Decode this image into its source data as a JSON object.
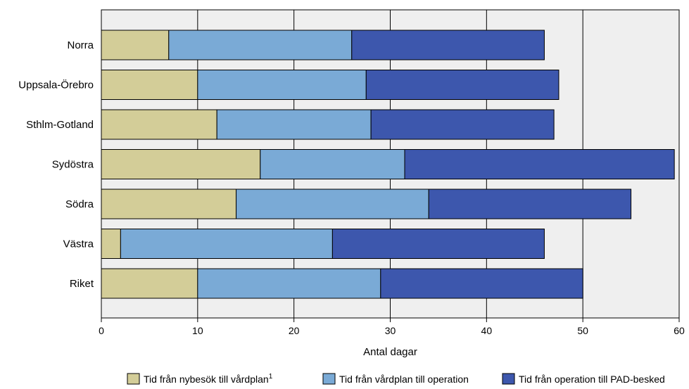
{
  "chart_data": {
    "type": "bar",
    "orientation": "horizontal",
    "stacked": true,
    "categories": [
      "Norra",
      "Uppsala-Örebro",
      "Sthlm-Gotland",
      "Sydöstra",
      "Södra",
      "Västra",
      "Riket"
    ],
    "series": [
      {
        "name": "Tid från nybesök till vårdplan",
        "name_superscript": "1",
        "color": "#d3cd98",
        "values": [
          7,
          10,
          12,
          16.5,
          14,
          2,
          10
        ]
      },
      {
        "name": "Tid från vårdplan till operation",
        "color": "#7aaad6",
        "values": [
          19,
          17.5,
          16,
          15,
          20,
          22,
          19
        ]
      },
      {
        "name": "Tid från operation till PAD-besked",
        "color": "#3d57ad",
        "values": [
          20,
          20,
          19,
          28,
          21,
          22,
          21
        ]
      }
    ],
    "xlabel": "Antal dagar",
    "ylabel": "",
    "title": "",
    "xlim": [
      0,
      60
    ],
    "xticks": [
      0,
      10,
      20,
      30,
      40,
      50,
      60
    ],
    "grid": "vertical",
    "legend_position": "bottom",
    "plot_background": "#efefef"
  }
}
